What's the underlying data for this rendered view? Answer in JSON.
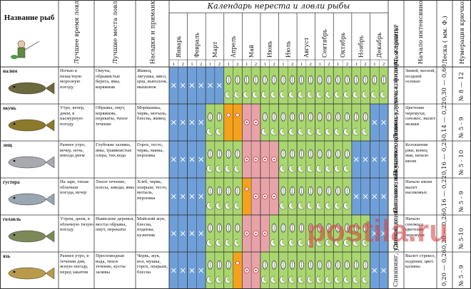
{
  "title": "Календарь нереста и ловли рыбы",
  "headers": {
    "fish_name": "Название рыб",
    "best_time": "Лучшее время ловли",
    "best_place": "Лучшие места ловли",
    "bait": "Насадки и приманки для ловли рыбы",
    "what_to_catch": "Чем ловить?",
    "bite_start": "Начало интенсивного клева",
    "line": "Леска ( мм. Ф.)",
    "hook": "Нумерация крючков"
  },
  "months": [
    "Январь",
    "Февраль",
    "Март",
    "Апрель",
    "Май",
    "Июнь",
    "Июль",
    "Август",
    "Сентябрь",
    "Октябрь",
    "Ноябрь",
    "Декабрь"
  ],
  "half_labels": [
    "1",
    "2"
  ],
  "colors": {
    "blue": "#6f9fd8",
    "green": "#a9d66f",
    "pink": "#e8a3a8",
    "orange": "#f4a21c",
    "grid": "#333333"
  },
  "rows": [
    {
      "name": "налим",
      "time": "Ночью в ненастную морозную погоду",
      "place": "Омуты, обрывистые берега, ямы, коряжник",
      "bait": "Живец, лягушка, мясо, ерш, выползок, мышонок",
      "what": "",
      "start": "Зимой, весной, поздней осенью",
      "line": "0,30 — 0,60",
      "hook": "№ 8 — 12"
    },
    {
      "name": "окунь",
      "time": "Утро, вечер, днем, в пасмурную погоду",
      "place": "Обрывы, омут, коряжник, перекаты, тихое течение",
      "bait": "Мормышка, червь, мотыль, блесна, живец",
      "what": "Донка, удочка, спиннинг, жерлица",
      "start": "Цветение черемухи, сенокос, вылет мошки",
      "line": "0,14 — 0,22",
      "hook": "№ 5 - 9"
    },
    {
      "name": "лещ",
      "time": "Раннее утро, вечер, ночь, иногда днем",
      "place": "Глубокие заливы, ямы, травянистые озера, тих.вода",
      "bait": "Горох, тесто, червь, манка, перловка",
      "what": "Поплавочная донка, удочка, фидер",
      "start": "Колошение ржи, конец мая, начало июня",
      "line": "0,16 — 0,25",
      "hook": "№ 5 - 10"
    },
    {
      "name": "густера",
      "time": "На заре, тихая облачная погода, вечер",
      "place": "Тихое течение, плесы, заводи, ямы",
      "bait": "Хлеб, червь, опарыш, тесто, мотыль, перловка",
      "what": "Поплавочная удочка, донка",
      "start": "Начало июня вылет насекомых",
      "line": "0,16 — 0,22",
      "hook": "№ 5 - 9"
    },
    {
      "name": "голавль",
      "time": "Утром, днем, в облачную тихую погоду",
      "place": "Нависшие деревья, мосты обрывы, омут, перекаты",
      "bait": "Майский жук, блесна, поденка, кузнечик",
      "what": "Спиннинг, поплавок, нахлыст",
      "start": "Начало сенокоса, цветение черемухи",
      "line": "0,20 — 0,26",
      "hook": "№ 5-10"
    },
    {
      "name": "язь",
      "time": "Раннее утро, в течении дня, ясную погоду, перед закатом",
      "place": "Пресноводная вода, тихое течение, кусты заливы",
      "bait": "Червь, жук, вол, мушка, горох, опарыш, блесна",
      "what": "Спиннинг, удочка, донка",
      "start": "Вылет стрекоз, поденки, цвет. калины",
      "line": "0,20 — 0,26",
      "hook": "№ 5 - 9"
    }
  ],
  "watermark": "postila.ru",
  "month_colors": [
    [
      "blue",
      "blue",
      "blue",
      "blue",
      "blue",
      "blue",
      "green",
      "green",
      "green",
      "green",
      "green",
      "green",
      "green",
      "green",
      "green",
      "green",
      "green",
      "green",
      "green",
      "green",
      "green",
      "green",
      "green",
      "green"
    ],
    [
      "blue",
      "blue",
      "blue",
      "blue",
      "green",
      "green",
      "orange",
      "orange",
      "pink",
      "pink",
      "green",
      "green",
      "green",
      "green",
      "green",
      "green",
      "green",
      "green",
      "green",
      "green",
      "green",
      "green",
      "blue",
      "blue"
    ],
    [
      "blue",
      "blue",
      "blue",
      "blue",
      "green",
      "green",
      "green",
      "green",
      "pink",
      "pink",
      "pink",
      "pink",
      "green",
      "green",
      "green",
      "green",
      "green",
      "green",
      "green",
      "green",
      "blue",
      "blue",
      "blue",
      "blue"
    ],
    [
      "blue",
      "blue",
      "blue",
      "blue",
      "green",
      "green",
      "green",
      "green",
      "orange",
      "pink",
      "pink",
      "pink",
      "green",
      "green",
      "green",
      "green",
      "green",
      "green",
      "green",
      "green",
      "blue",
      "blue",
      "blue",
      "blue"
    ],
    [
      "blue",
      "blue",
      "blue",
      "blue",
      "green",
      "green",
      "green",
      "green",
      "pink",
      "pink",
      "pink",
      "green",
      "green",
      "green",
      "green",
      "green",
      "green",
      "green",
      "green",
      "green",
      "green",
      "green",
      "blue",
      "blue"
    ],
    [
      "blue",
      "blue",
      "blue",
      "blue",
      "green",
      "green",
      "green",
      "orange",
      "pink",
      "pink",
      "green",
      "green",
      "green",
      "green",
      "green",
      "green",
      "green",
      "green",
      "green",
      "green",
      "green",
      "green",
      "blue",
      "blue"
    ]
  ]
}
